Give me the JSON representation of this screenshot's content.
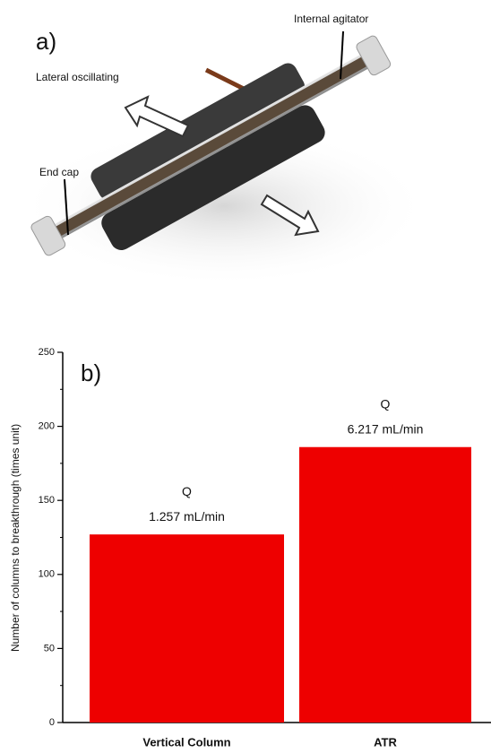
{
  "illustration": {
    "panel_label": "a)",
    "labels": [
      "Internal agitator",
      "Lateral oscillating",
      "End cap"
    ]
  },
  "chart_data": {
    "type": "bar",
    "panel_label": "b)",
    "y_label": "Number of columns to breakthrough (times unit)",
    "categories": [
      "Vertical Column",
      "ATR"
    ],
    "values": [
      127,
      186
    ],
    "color": "#ee0000",
    "annotations": [
      [
        "Q",
        "1.257 mL/min"
      ],
      [
        "Q",
        "6.217 mL/min"
      ]
    ],
    "ylim": [
      0,
      250
    ],
    "yticks": [
      0,
      50,
      100,
      150,
      200,
      250
    ],
    "yminorticks": [
      25,
      75,
      125,
      175,
      225
    ],
    "grid": false
  }
}
